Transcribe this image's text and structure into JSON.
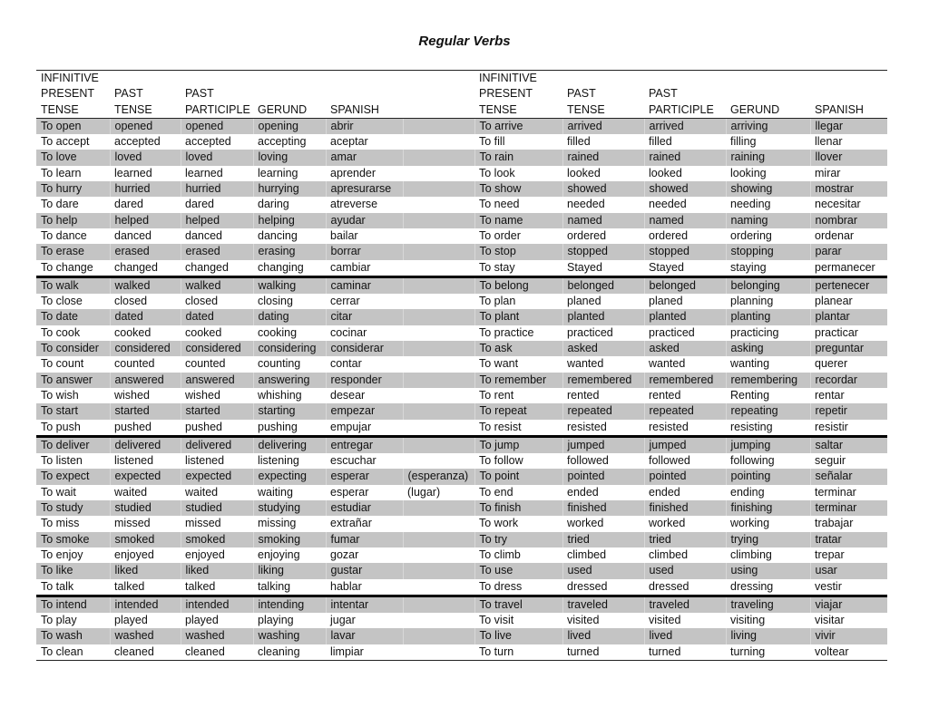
{
  "title": "Regular Verbs",
  "header_rows": [
    [
      "INFINITIVE",
      "",
      "",
      "",
      "",
      "",
      "INFINITIVE",
      "",
      "",
      "",
      ""
    ],
    [
      "PRESENT",
      "PAST",
      "PAST",
      "",
      "",
      "",
      "PRESENT",
      "PAST",
      "PAST",
      "",
      ""
    ],
    [
      "TENSE",
      "TENSE",
      "PARTICIPLE",
      "GERUND",
      "SPANISH",
      "",
      "TENSE",
      "TENSE",
      "PARTICIPLE",
      "GERUND",
      "SPANISH"
    ]
  ],
  "blocks": [
    [
      [
        "To open",
        "opened",
        "opened",
        "opening",
        "abrir",
        "",
        "To arrive",
        "arrived",
        "arrived",
        "arriving",
        "llegar"
      ],
      [
        "To accept",
        "accepted",
        "accepted",
        "accepting",
        "aceptar",
        "",
        "To fill",
        "filled",
        "filled",
        "filling",
        "llenar"
      ],
      [
        "To love",
        "loved",
        "loved",
        "loving",
        "amar",
        "",
        "To rain",
        "rained",
        "rained",
        "raining",
        "llover"
      ],
      [
        "To learn",
        "learned",
        "learned",
        "learning",
        "aprender",
        "",
        "To look",
        "looked",
        "looked",
        "looking",
        "mirar"
      ],
      [
        "To hurry",
        "hurried",
        "hurried",
        "hurrying",
        "apresurarse",
        "",
        "To show",
        "showed",
        "showed",
        "showing",
        "mostrar"
      ],
      [
        "To dare",
        "dared",
        "dared",
        "daring",
        "atreverse",
        "",
        "To need",
        "needed",
        "needed",
        "needing",
        "necesitar"
      ],
      [
        "To help",
        "helped",
        "helped",
        "helping",
        "ayudar",
        "",
        "To name",
        "named",
        "named",
        "naming",
        "nombrar"
      ],
      [
        "To dance",
        "danced",
        "danced",
        "dancing",
        "bailar",
        "",
        "To order",
        "ordered",
        "ordered",
        "ordering",
        "ordenar"
      ],
      [
        "To erase",
        "erased",
        "erased",
        "erasing",
        "borrar",
        "",
        "To stop",
        "stopped",
        "stopped",
        "stopping",
        "parar"
      ],
      [
        "To change",
        "changed",
        "changed",
        "changing",
        "cambiar",
        "",
        "To stay",
        "Stayed",
        "Stayed",
        "staying",
        "permanecer"
      ]
    ],
    [
      [
        "To walk",
        "walked",
        "walked",
        "walking",
        "caminar",
        "",
        "To belong",
        "belonged",
        "belonged",
        "belonging",
        "pertenecer"
      ],
      [
        "To close",
        "closed",
        "closed",
        "closing",
        "cerrar",
        "",
        "To plan",
        "planed",
        "planed",
        "planning",
        "planear"
      ],
      [
        "To date",
        "dated",
        "dated",
        "dating",
        "citar",
        "",
        "To plant",
        "planted",
        "planted",
        "planting",
        "plantar"
      ],
      [
        "To cook",
        "cooked",
        "cooked",
        "cooking",
        "cocinar",
        "",
        "To practice",
        "practiced",
        "practiced",
        "practicing",
        "practicar"
      ],
      [
        "To consider",
        "considered",
        "considered",
        "considering",
        "considerar",
        "",
        "To ask",
        "asked",
        "asked",
        "asking",
        "preguntar"
      ],
      [
        "To count",
        "counted",
        "counted",
        "counting",
        "contar",
        "",
        "To want",
        "wanted",
        "wanted",
        "wanting",
        "querer"
      ],
      [
        "To answer",
        "answered",
        "answered",
        "answering",
        "responder",
        "",
        "To remember",
        "remembered",
        "remembered",
        "remembering",
        "recordar"
      ],
      [
        "To wish",
        "wished",
        "wished",
        "whishing",
        "desear",
        "",
        "To  rent",
        "rented",
        "rented",
        "Renting",
        "rentar"
      ],
      [
        "To start",
        "started",
        "started",
        "starting",
        "empezar",
        "",
        "To repeat",
        "repeated",
        "repeated",
        "repeating",
        "repetir"
      ],
      [
        "To push",
        "pushed",
        "pushed",
        "pushing",
        "empujar",
        "",
        "To resist",
        "resisted",
        "resisted",
        "resisting",
        "resistir"
      ]
    ],
    [
      [
        "To deliver",
        "delivered",
        "delivered",
        "delivering",
        "entregar",
        "",
        "To jump",
        "jumped",
        "jumped",
        "jumping",
        "saltar"
      ],
      [
        "To listen",
        "listened",
        "listened",
        "listening",
        "escuchar",
        "",
        "To follow",
        "followed",
        "followed",
        "following",
        "seguir"
      ],
      [
        "To expect",
        "expected",
        "expected",
        "expecting",
        "esperar",
        "(esperanza)",
        "To point",
        "pointed",
        "pointed",
        "pointing",
        "señalar"
      ],
      [
        "To wait",
        "waited",
        "waited",
        "waiting",
        "esperar",
        "(lugar)",
        "To end",
        "ended",
        "ended",
        "ending",
        "terminar"
      ],
      [
        "To study",
        "studied",
        "studied",
        "studying",
        "estudiar",
        "",
        "To finish",
        "finished",
        "finished",
        "finishing",
        "terminar"
      ],
      [
        "To miss",
        "missed",
        "missed",
        "missing",
        "extrañar",
        "",
        "To work",
        "worked",
        "worked",
        "working",
        "trabajar"
      ],
      [
        "To smoke",
        "smoked",
        "smoked",
        "smoking",
        "fumar",
        "",
        "To try",
        "tried",
        "tried",
        "trying",
        "tratar"
      ],
      [
        "To enjoy",
        "enjoyed",
        "enjoyed",
        "enjoying",
        "gozar",
        "",
        "To climb",
        "climbed",
        "climbed",
        "climbing",
        "trepar"
      ],
      [
        "To like",
        "liked",
        "liked",
        "liking",
        "gustar",
        "",
        "To use",
        "used",
        "used",
        "using",
        "usar"
      ],
      [
        "To talk",
        "talked",
        "talked",
        "talking",
        "hablar",
        "",
        "To dress",
        "dressed",
        "dressed",
        "dressing",
        "vestir"
      ]
    ],
    [
      [
        "To intend",
        "intended",
        "intended",
        "intending",
        "intentar",
        "",
        "To travel",
        "traveled",
        "traveled",
        "traveling",
        "viajar"
      ],
      [
        "To play",
        "played",
        "played",
        "playing",
        "jugar",
        "",
        "To visit",
        "visited",
        "visited",
        "visiting",
        "visitar"
      ],
      [
        "To wash",
        "washed",
        "washed",
        "washing",
        "lavar",
        "",
        "To live",
        "lived",
        "lived",
        "living",
        "vivir"
      ],
      [
        "To clean",
        "cleaned",
        "cleaned",
        "cleaning",
        "limpiar",
        "",
        "To turn",
        "turned",
        "turned",
        "turning",
        "voltear"
      ]
    ]
  ],
  "colors": {
    "row_shade": "#c4c4c4",
    "rule": "#000000"
  }
}
